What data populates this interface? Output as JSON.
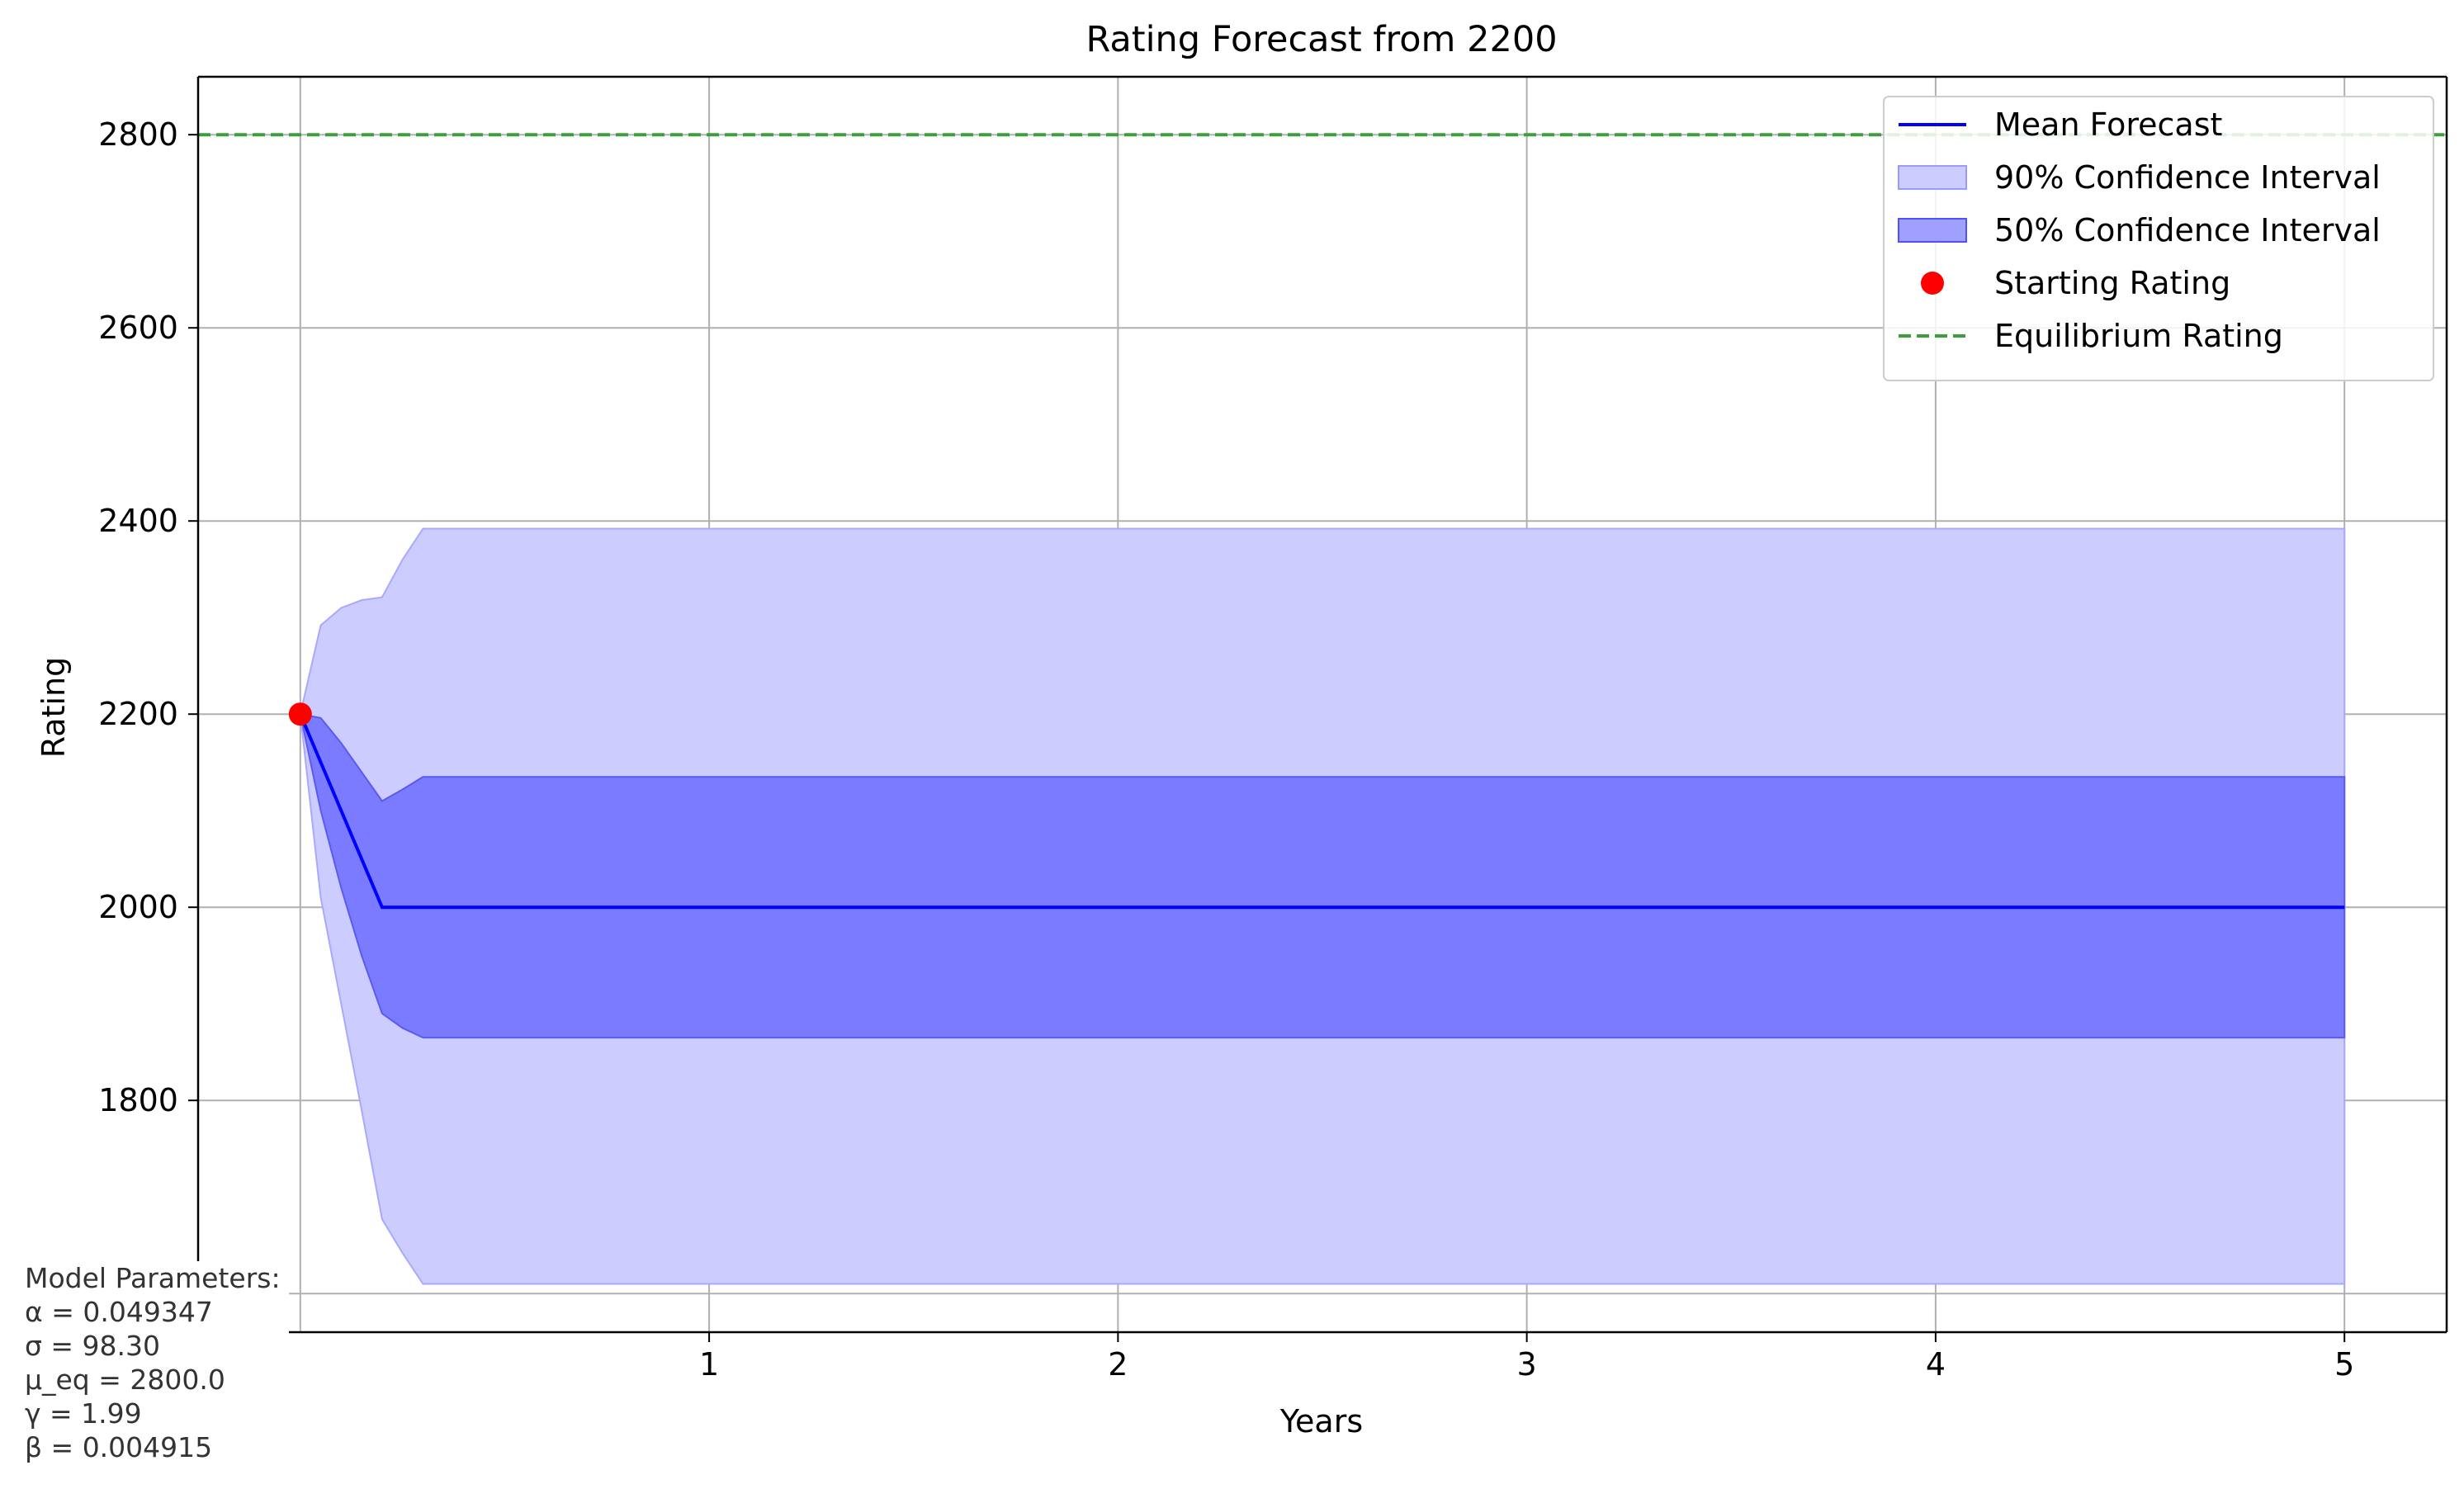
{
  "chart_data": {
    "type": "line",
    "title": "Rating Forecast from 2200",
    "xlabel": "Years",
    "ylabel": "Rating",
    "xlim": [
      -0.25,
      5.25
    ],
    "ylim": [
      1560,
      2860
    ],
    "x_ticks": [
      1,
      2,
      3,
      4,
      5
    ],
    "y_ticks": [
      1800,
      2000,
      2200,
      2400,
      2600,
      2800
    ],
    "grid": true,
    "legend_position": "top-right",
    "series": [
      {
        "name": "Mean Forecast",
        "color": "#0000ff",
        "x": [
          0,
          0.2,
          5
        ],
        "y": [
          2200,
          2000,
          2000
        ]
      }
    ],
    "bands": [
      {
        "name": "90% Confidence Interval",
        "color": "#ccccff",
        "x": [
          0,
          0.05,
          0.1,
          0.15,
          0.2,
          0.25,
          0.3,
          5
        ],
        "upper": [
          2200,
          2292,
          2310,
          2318,
          2321,
          2360,
          2392,
          2392
        ],
        "lower": [
          2200,
          2010,
          1900,
          1790,
          1677,
          1642,
          1610,
          1610
        ]
      },
      {
        "name": "50% Confidence Interval",
        "color": "#7b7bff",
        "x": [
          0,
          0.05,
          0.1,
          0.15,
          0.2,
          0.25,
          0.3,
          5
        ],
        "upper": [
          2200,
          2196,
          2170,
          2140,
          2110,
          2122,
          2135,
          2135
        ],
        "lower": [
          2200,
          2100,
          2020,
          1950,
          1890,
          1875,
          1865,
          1865
        ]
      }
    ],
    "points": [
      {
        "name": "Starting Rating",
        "color": "#ff0000",
        "x": 0,
        "y": 2200
      }
    ],
    "hlines": [
      {
        "name": "Equilibrium Rating",
        "color": "#3c9f3c",
        "y": 2800,
        "style": "dashed"
      }
    ],
    "legend": [
      {
        "label": "Mean Forecast",
        "kind": "line",
        "color": "#0000ff"
      },
      {
        "label": "90% Confidence Interval",
        "kind": "patch",
        "color": "#ccccff",
        "edge": "#9999ff"
      },
      {
        "label": "50% Confidence Interval",
        "kind": "patch",
        "color": "#a0a0ff",
        "edge": "#5050ff"
      },
      {
        "label": "Starting Rating",
        "kind": "dot",
        "color": "#ff0000"
      },
      {
        "label": "Equilibrium Rating",
        "kind": "dash",
        "color": "#3c9f3c"
      }
    ]
  },
  "parameters": {
    "heading": "Model Parameters:",
    "alpha": "α = 0.049347",
    "sigma": "σ = 98.30",
    "mu_eq": "μ_eq = 2800.0",
    "gamma": "γ = 1.99",
    "beta": "β = 0.004915"
  }
}
